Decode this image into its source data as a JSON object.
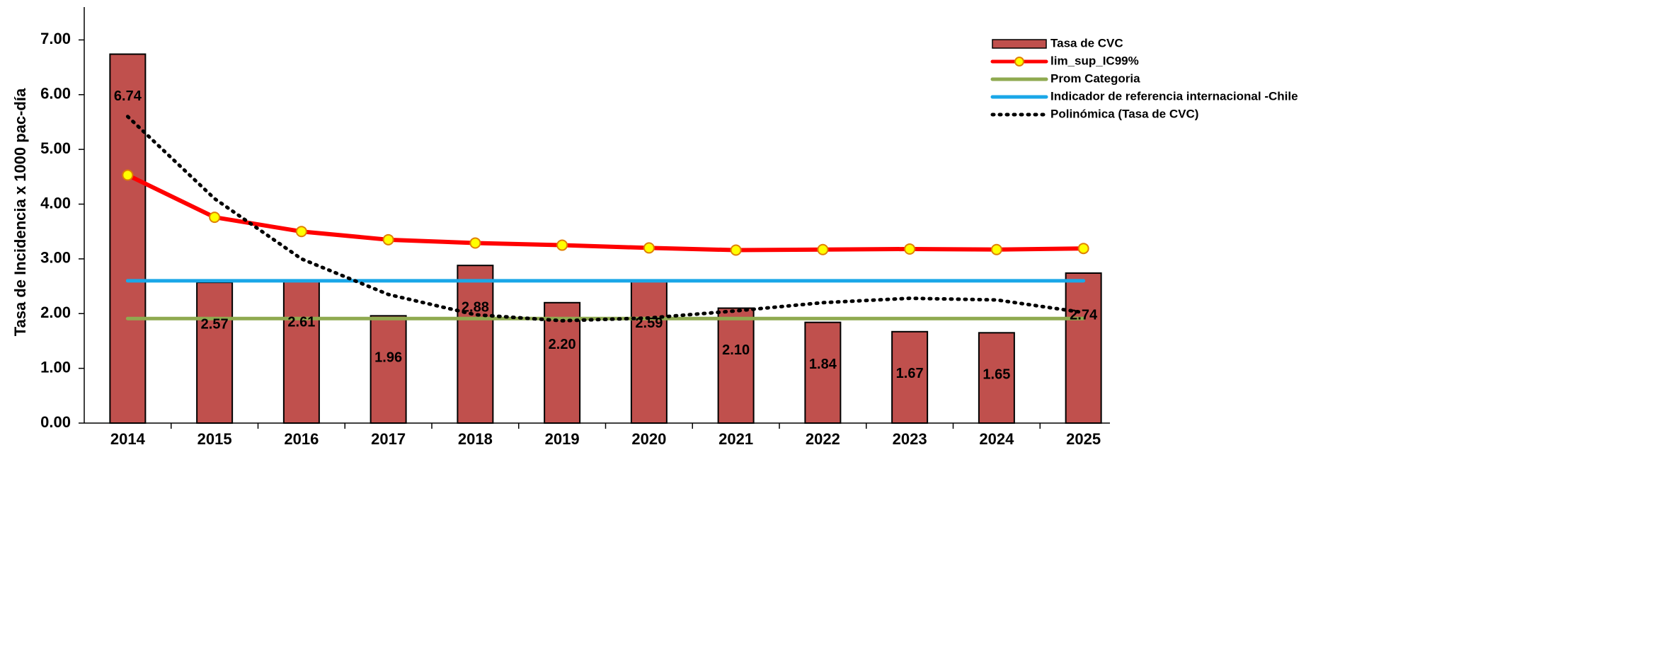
{
  "chart_data": {
    "type": "bar",
    "y_label": "Tasa de Incidencia x 1000 pac-día",
    "categories": [
      "2014",
      "2015",
      "2016",
      "2017",
      "2018",
      "2019",
      "2020",
      "2021",
      "2022",
      "2023",
      "2024",
      "2025"
    ],
    "series": [
      {
        "name": "Tasa de CVC",
        "type": "bar",
        "color": "#c0504d",
        "values": [
          6.74,
          2.57,
          2.61,
          1.96,
          2.88,
          2.2,
          2.59,
          2.1,
          1.84,
          1.67,
          1.65,
          2.74
        ],
        "value_labels": [
          "6.74",
          "2.57",
          "2.61",
          "1.96",
          "2.88",
          "2.20",
          "2.59",
          "2.10",
          "1.84",
          "1.67",
          "1.65",
          "2.74"
        ]
      },
      {
        "name": "lim_sup_IC99%",
        "type": "line",
        "color": "#ff0000",
        "marker": true,
        "values": [
          4.53,
          3.76,
          3.5,
          3.35,
          3.29,
          3.25,
          3.2,
          3.16,
          3.17,
          3.18,
          3.17,
          3.19
        ]
      },
      {
        "name": "Prom Categoria",
        "type": "line",
        "color": "#8faa50",
        "values": [
          1.91,
          1.91,
          1.91,
          1.91,
          1.91,
          1.91,
          1.91,
          1.91,
          1.91,
          1.91,
          1.91,
          1.91
        ]
      },
      {
        "name": "Indicador de referencia internacional -Chile",
        "type": "line",
        "color": "#1aa7e8",
        "values": [
          2.6,
          2.6,
          2.6,
          2.6,
          2.6,
          2.6,
          2.6,
          2.6,
          2.6,
          2.6,
          2.6,
          2.6
        ]
      },
      {
        "name": "Polinómica (Tasa de CVC)",
        "type": "line",
        "color": "#000000",
        "dash": "dotted",
        "values": [
          5.6,
          4.1,
          3.0,
          2.35,
          1.98,
          1.87,
          1.92,
          2.05,
          2.2,
          2.28,
          2.25,
          2.02
        ]
      }
    ],
    "ylim": [
      0,
      7.6
    ],
    "yticks": [
      {
        "value": 0,
        "label": "0.00"
      },
      {
        "value": 1,
        "label": "1.00"
      },
      {
        "value": 2,
        "label": "2.00"
      },
      {
        "value": 3,
        "label": "3.00"
      },
      {
        "value": 4,
        "label": "4.00"
      },
      {
        "value": 5,
        "label": "5.00"
      },
      {
        "value": 6,
        "label": "6.00"
      },
      {
        "value": 7,
        "label": "7.00"
      }
    ]
  }
}
